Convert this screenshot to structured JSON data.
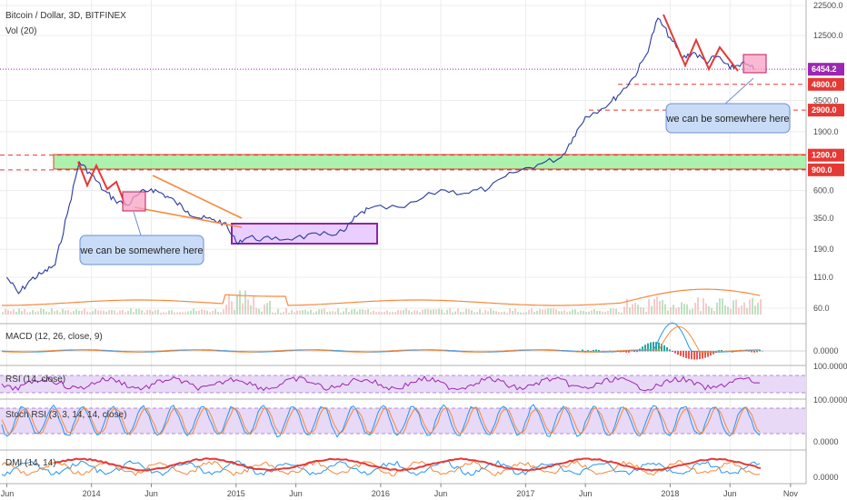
{
  "header": {
    "title": "Bitcoin / Dollar, 3D, BITFINEX",
    "volume_label": "Vol (20)"
  },
  "chart_data": {
    "type": "line",
    "symbol": "Bitcoin / Dollar",
    "interval": "3D",
    "exchange": "BITFINEX",
    "y_scale": "log",
    "x_ticks": [
      "Jun",
      "2014",
      "Jun",
      "2015",
      "Jun",
      "2016",
      "Jun",
      "2017",
      "Jun",
      "2018",
      "Jun",
      "Nov"
    ],
    "y_ticks": [
      "22500.0",
      "12500.0",
      "6454.2",
      "4800.0",
      "3500.0",
      "2900.0",
      "1900.0",
      "1200.0",
      "900.0",
      "600.0",
      "350.0",
      "190.0",
      "110.0",
      "60.0"
    ],
    "price_series": {
      "name": "Bitcoin / Dollar",
      "color": "#2a3a9f",
      "x": [
        "2013-06",
        "2013-07",
        "2013-08",
        "2013-09",
        "2013-10",
        "2013-11",
        "2013-12",
        "2014-01",
        "2014-02",
        "2014-03",
        "2014-04",
        "2014-05",
        "2014-06",
        "2014-07",
        "2014-08",
        "2014-09",
        "2014-10",
        "2014-11",
        "2014-12",
        "2015-01",
        "2015-02",
        "2015-04",
        "2015-06",
        "2015-08",
        "2015-10",
        "2015-11",
        "2015-12",
        "2016-03",
        "2016-06",
        "2016-08",
        "2016-10",
        "2016-12",
        "2017-02",
        "2017-04",
        "2017-05",
        "2017-06",
        "2017-08",
        "2017-09",
        "2017-10",
        "2017-11",
        "2017-12",
        "2018-01",
        "2018-02",
        "2018-03",
        "2018-04",
        "2018-05",
        "2018-06",
        "2018-07",
        "2018-08"
      ],
      "y": [
        110,
        80,
        105,
        120,
        140,
        380,
        1050,
        820,
        600,
        500,
        450,
        560,
        620,
        560,
        480,
        400,
        350,
        340,
        320,
        220,
        240,
        230,
        240,
        250,
        270,
        360,
        420,
        430,
        610,
        570,
        630,
        850,
        1000,
        1150,
        1700,
        2550,
        3300,
        4200,
        5500,
        8500,
        17500,
        12000,
        8000,
        9000,
        7500,
        8300,
        6500,
        7300,
        6454.2
      ]
    },
    "volume_series": {
      "name": "Vol (20)",
      "ma_color": "#f6893a"
    },
    "horizontal_levels": [
      {
        "label": "6454.2",
        "value": 6454.2,
        "color": "#9c27b0",
        "style": "dotted"
      },
      {
        "label": "4800.0",
        "value": 4800,
        "color": "#e53935",
        "style": "dashed"
      },
      {
        "label": "2900.0",
        "value": 2900,
        "color": "#e53935",
        "style": "dashed"
      },
      {
        "label": "1200.0",
        "value": 1200,
        "color": "#e53935",
        "style": "dashed"
      },
      {
        "label": "900.0",
        "value": 900,
        "color": "#e53935",
        "style": "dashed"
      }
    ],
    "support_zone": {
      "low": 900,
      "high": 1200,
      "color": "#90ee90"
    },
    "range_box_2015": {
      "low": 200,
      "high": 300,
      "color": "#d9a6ff"
    },
    "annotations": [
      {
        "text": "we can be somewhere here"
      },
      {
        "text": "we can be somewhere here"
      }
    ],
    "indicators": [
      {
        "label": "MACD (12, 26, close, 9)",
        "value_label": "0.0000"
      },
      {
        "label": "RSI (14, close)",
        "value_label": "100.0000"
      },
      {
        "label": "Stoch RSI (3, 3, 14, 14, close)",
        "value_label": "100.0000",
        "lower_label": "0.0000"
      },
      {
        "label": "DMI (14, 14)",
        "value_label": "0.0000"
      }
    ]
  }
}
